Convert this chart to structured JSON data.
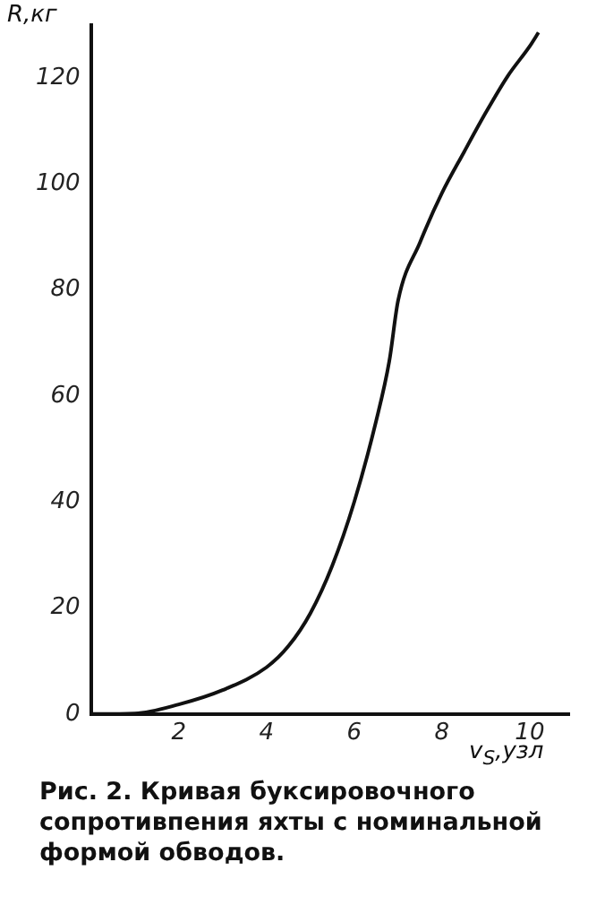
{
  "chart_data": {
    "type": "line",
    "ylabel": "R,кг",
    "xlabel": "v$_{S}$,узл",
    "annotations": [
      "Рис. 2. Кривая буксировочного сопротивпения яхты с номинальной формой обводов."
    ],
    "xlim": [
      0,
      10.9
    ],
    "xticks": [
      2,
      4,
      6,
      8,
      10
    ],
    "ylim": [
      0,
      130
    ],
    "yticks": [
      0,
      20,
      40,
      60,
      80,
      100,
      120
    ],
    "grid": false,
    "legend": false,
    "marker": "none",
    "line_style": "solid",
    "series": [
      {
        "color": "#111111",
        "x": [
          0,
          1,
          2,
          3,
          4,
          4.5,
          5,
          5.5,
          6,
          6.5,
          6.8,
          7,
          7.5,
          8,
          8.5,
          9,
          9.5,
          10,
          10.2
        ],
        "values": [
          0,
          0.1,
          1.8,
          4.5,
          8.8,
          12.8,
          19,
          28,
          40,
          55.3,
          66.6,
          78,
          89,
          98.3,
          106,
          113.5,
          120.4,
          126,
          128.6
        ]
      }
    ]
  }
}
